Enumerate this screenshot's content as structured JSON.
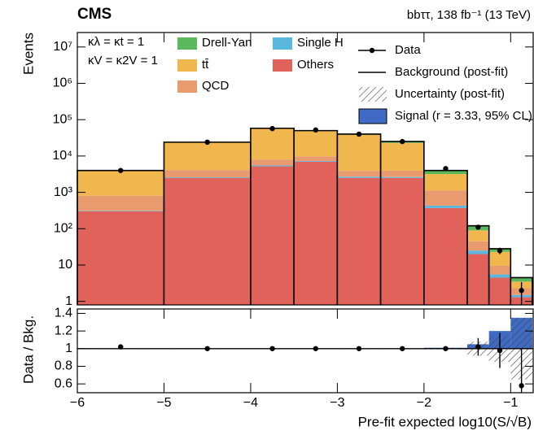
{
  "chart_data": [
    {
      "type": "histogram",
      "title": "CMS",
      "subtitle": "bbττ, 138 fb⁻¹ (13 TeV)",
      "annotations": [
        "κλ = κt = 1",
        "κV = κ2V = 1"
      ],
      "ylabel": "Events",
      "bins": [
        -6,
        -5,
        -4,
        -3.5,
        -3,
        -2.5,
        -2,
        -1.5,
        -1.25,
        -1,
        -0.75
      ],
      "series": [
        {
          "name": "Others",
          "color": "#e0625b",
          "values": [
            300,
            2500,
            5200,
            7000,
            2500,
            2500,
            370,
            20,
            4.5,
            1.3
          ]
        },
        {
          "name": "Single H",
          "color": "#5ab7de",
          "values": [
            10,
            100,
            300,
            300,
            200,
            150,
            60,
            5,
            1,
            0.2
          ]
        },
        {
          "name": "QCD",
          "color": "#e99a6f",
          "values": [
            500,
            1500,
            2500,
            2500,
            1200,
            1300,
            700,
            20,
            4,
            0.8
          ]
        },
        {
          "name": "tt̄",
          "color": "#f0b74f",
          "values": [
            3090,
            19500,
            48500,
            39000,
            34600,
            19050,
            2070,
            45,
            13.5,
            1.2
          ]
        },
        {
          "name": "Drell-Yan",
          "color": "#5bb85c",
          "values": [
            100,
            400,
            1500,
            1200,
            1500,
            2000,
            800,
            30,
            5,
            1
          ]
        }
      ],
      "data": {
        "name": "Data",
        "values": [
          4000,
          24000,
          57000,
          52000,
          40000,
          25000,
          4500,
          110,
          25,
          2
        ],
        "errors": [
          63,
          155,
          240,
          230,
          200,
          160,
          67,
          10.5,
          5,
          1.4
        ]
      },
      "background_label": "Background (post-fit)",
      "uncertainty_label": "Uncertainty (post-fit)",
      "signal": {
        "name": "Signal (r = 3.33, 95% CL)",
        "color": "#3f6bc4"
      },
      "ylim": [
        0.8,
        25000000
      ],
      "yticks": [
        1,
        10,
        {
          "value": 100,
          "label": "10²"
        },
        {
          "value": 1000,
          "label": "10³"
        },
        {
          "value": 10000,
          "label": "10⁴"
        },
        {
          "value": 100000,
          "label": "10⁵"
        },
        {
          "value": 1000000,
          "label": "10⁶"
        },
        {
          "value": 10000000,
          "label": "10⁷"
        }
      ],
      "log_scale": true
    },
    {
      "type": "ratio",
      "ylabel": "Data / Bkg.",
      "xlabel": "Pre-fit expected log10(S/√B)",
      "data_values": [
        1.02,
        1,
        1,
        1,
        1,
        1,
        1,
        1.02,
        0.98,
        0.58
      ],
      "data_errors": [
        0.016,
        0.007,
        0.004,
        0.004,
        0.005,
        0.006,
        0.015,
        0.1,
        0.2,
        0.42
      ],
      "signal_values": [
        1,
        1,
        1,
        1,
        1,
        1,
        1.01,
        1.05,
        1.2,
        1.35
      ],
      "uncertainty": [
        0.005,
        0.005,
        0.004,
        0.004,
        0.005,
        0.006,
        0.01,
        0.08,
        0.15,
        0.35
      ],
      "xlim": [
        -6,
        -0.74
      ],
      "xticks": [
        {
          "value": -6,
          "label": "−6"
        },
        {
          "value": -5,
          "label": "−5"
        },
        {
          "value": -4,
          "label": "−4"
        },
        {
          "value": -3,
          "label": "−3"
        },
        {
          "value": -2,
          "label": "−2"
        },
        {
          "value": -1,
          "label": "−1"
        }
      ],
      "ylim": [
        0.5,
        1.45
      ],
      "yticks": [
        1.4,
        1.2,
        1,
        0.8,
        0.6
      ]
    }
  ]
}
